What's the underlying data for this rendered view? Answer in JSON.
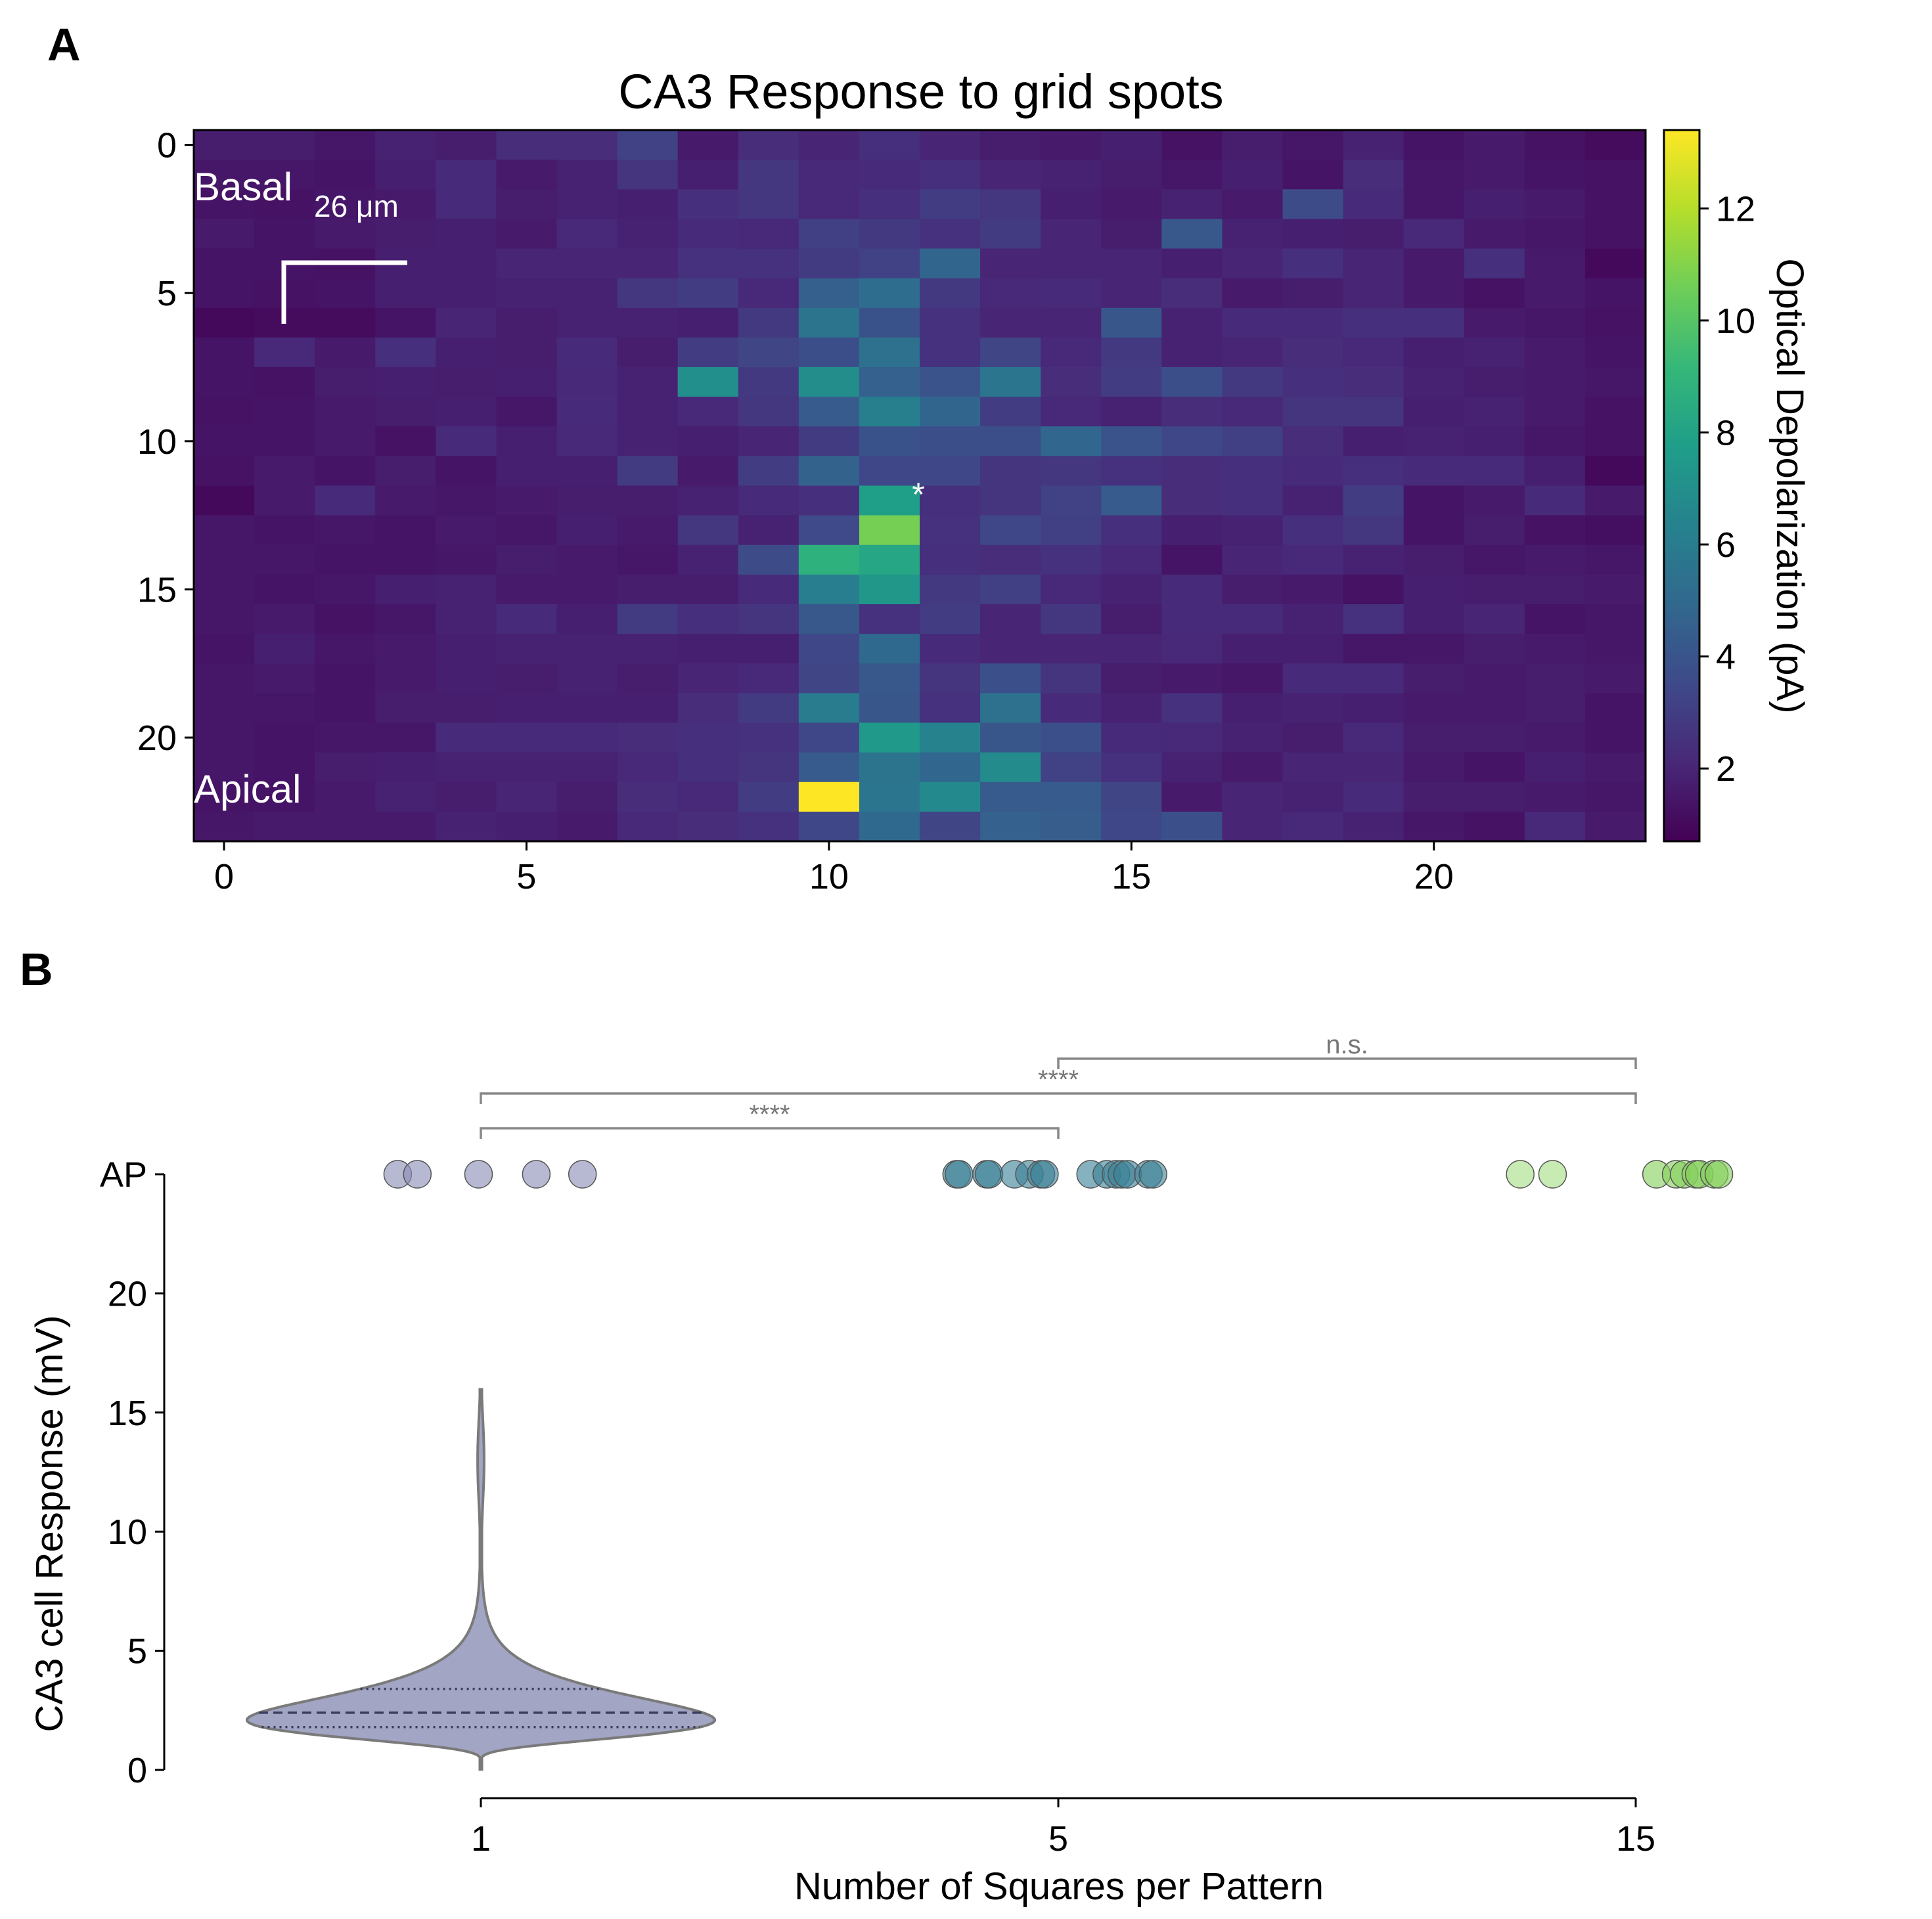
{
  "panel_labels": {
    "a": "A",
    "b": "B"
  },
  "chart_data": [
    {
      "panel": "A",
      "type": "heatmap",
      "title": "CA3 Response to grid spots",
      "xlabel": "",
      "ylabel": "",
      "x_ticks": [
        "0",
        "5",
        "10",
        "15",
        "20"
      ],
      "y_ticks": [
        "0",
        "5",
        "10",
        "15",
        "20"
      ],
      "grid_size": [
        24,
        24
      ],
      "colormap": "viridis",
      "colorbar": {
        "label": "Optical Depolarization (pA)",
        "ticks": [
          "2",
          "4",
          "6",
          "8",
          "10",
          "12"
        ],
        "range": [
          0.7,
          13.4
        ]
      },
      "annotations": {
        "top_label": "Basal",
        "bottom_label": "Apical",
        "scale_label": "26 μm",
        "marker": "*"
      },
      "values": [
        [
          1.7,
          1.7,
          1.5,
          1.9,
          1.7,
          2.3,
          2.3,
          3.2,
          1.6,
          2.3,
          2.0,
          2.4,
          2.0,
          1.7,
          1.6,
          1.8,
          1.3,
          1.7,
          1.5,
          1.9,
          1.4,
          1.6,
          1.3,
          1.1
        ],
        [
          1.5,
          1.5,
          1.4,
          1.8,
          2.2,
          1.6,
          1.9,
          2.6,
          1.8,
          2.7,
          2.1,
          2.2,
          2.4,
          2.0,
          1.9,
          1.7,
          1.5,
          1.8,
          1.4,
          2.3,
          1.5,
          1.6,
          1.4,
          1.3
        ],
        [
          1.4,
          1.3,
          1.5,
          1.6,
          2.2,
          1.7,
          1.9,
          1.8,
          2.4,
          2.7,
          2.1,
          2.4,
          3.0,
          2.7,
          1.8,
          1.6,
          1.9,
          1.6,
          3.6,
          2.2,
          1.5,
          1.8,
          1.6,
          1.3
        ],
        [
          1.6,
          1.4,
          1.6,
          1.7,
          1.8,
          1.6,
          2.1,
          1.9,
          2.2,
          2.1,
          3.1,
          2.8,
          2.5,
          2.9,
          2.0,
          1.7,
          4.2,
          1.9,
          1.8,
          1.7,
          2.1,
          1.6,
          1.5,
          1.3
        ],
        [
          1.4,
          1.4,
          1.3,
          1.8,
          1.8,
          2.0,
          2.0,
          2.0,
          2.5,
          2.5,
          2.9,
          3.2,
          4.8,
          2.0,
          2.0,
          2.0,
          1.8,
          2.0,
          2.4,
          2.0,
          1.6,
          2.4,
          1.6,
          1.0
        ],
        [
          1.4,
          1.3,
          1.4,
          1.8,
          1.8,
          1.9,
          1.9,
          2.7,
          3.0,
          2.1,
          4.5,
          5.2,
          2.8,
          2.1,
          2.2,
          2.0,
          2.3,
          1.6,
          1.7,
          2.0,
          1.6,
          1.3,
          1.6,
          1.4
        ],
        [
          1.0,
          1.1,
          1.1,
          1.4,
          2.0,
          1.7,
          1.9,
          1.9,
          1.8,
          2.8,
          5.6,
          3.9,
          2.5,
          2.0,
          2.0,
          4.1,
          1.9,
          2.2,
          2.2,
          2.4,
          2.4,
          1.6,
          1.5,
          1.3
        ],
        [
          1.4,
          2.1,
          1.6,
          2.4,
          1.8,
          1.7,
          2.2,
          1.7,
          3.0,
          3.3,
          3.7,
          5.4,
          2.5,
          3.3,
          2.1,
          2.8,
          1.9,
          2.0,
          2.3,
          2.1,
          1.8,
          1.9,
          1.6,
          1.4
        ],
        [
          1.4,
          1.3,
          1.7,
          1.8,
          1.7,
          1.8,
          2.1,
          1.9,
          7.0,
          2.8,
          6.9,
          4.6,
          4.0,
          5.7,
          2.3,
          3.0,
          3.7,
          2.8,
          2.4,
          2.3,
          1.9,
          1.7,
          1.6,
          1.5
        ],
        [
          1.3,
          1.4,
          1.6,
          1.7,
          1.8,
          1.5,
          2.2,
          1.9,
          2.1,
          2.7,
          4.3,
          6.2,
          4.8,
          3.0,
          2.1,
          1.9,
          2.3,
          2.1,
          2.6,
          2.6,
          1.8,
          1.9,
          1.6,
          1.3
        ],
        [
          1.4,
          1.4,
          1.6,
          1.3,
          2.2,
          1.8,
          2.1,
          1.9,
          1.8,
          2.0,
          2.9,
          3.9,
          3.7,
          3.7,
          4.9,
          4.0,
          3.4,
          3.1,
          2.3,
          1.8,
          1.9,
          1.8,
          1.5,
          1.3
        ],
        [
          1.3,
          1.6,
          1.4,
          1.7,
          1.4,
          1.8,
          1.8,
          2.9,
          1.6,
          3.0,
          4.7,
          3.4,
          3.4,
          2.6,
          2.7,
          2.5,
          2.3,
          2.4,
          2.2,
          2.4,
          2.2,
          2.2,
          1.8,
          1.0
        ],
        [
          1.0,
          1.6,
          2.2,
          1.6,
          1.5,
          1.6,
          1.7,
          1.7,
          1.9,
          2.2,
          2.4,
          7.8,
          2.4,
          2.6,
          3.2,
          4.3,
          2.3,
          2.4,
          1.9,
          3.0,
          1.4,
          1.6,
          2.2,
          1.6
        ],
        [
          1.5,
          1.4,
          1.5,
          1.4,
          1.6,
          1.5,
          1.8,
          1.6,
          2.7,
          1.9,
          3.5,
          10.7,
          2.5,
          3.4,
          3.1,
          2.4,
          1.8,
          1.9,
          2.4,
          2.7,
          1.4,
          1.7,
          1.3,
          1.2
        ],
        [
          1.5,
          1.5,
          1.4,
          1.4,
          1.5,
          1.7,
          1.6,
          1.5,
          1.9,
          3.6,
          8.8,
          8.2,
          2.4,
          2.3,
          2.5,
          2.1,
          1.4,
          2.0,
          2.1,
          1.9,
          1.7,
          1.5,
          1.6,
          1.5
        ],
        [
          1.5,
          1.4,
          1.5,
          1.8,
          1.9,
          1.6,
          1.6,
          1.7,
          1.7,
          2.2,
          6.1,
          7.4,
          2.8,
          3.1,
          2.1,
          1.9,
          2.2,
          1.7,
          1.6,
          1.3,
          1.8,
          1.7,
          1.7,
          1.6
        ],
        [
          1.5,
          1.6,
          1.3,
          1.5,
          1.9,
          2.2,
          1.8,
          2.9,
          2.4,
          2.6,
          4.2,
          2.5,
          3.0,
          2.0,
          2.7,
          1.7,
          2.2,
          2.2,
          1.9,
          2.5,
          1.8,
          2.0,
          1.4,
          1.5
        ],
        [
          1.4,
          1.8,
          1.5,
          1.6,
          1.8,
          1.9,
          1.9,
          1.9,
          1.8,
          1.8,
          3.4,
          5.0,
          2.2,
          2.0,
          2.0,
          2.0,
          2.1,
          1.8,
          1.8,
          1.5,
          1.5,
          1.7,
          1.6,
          1.5
        ],
        [
          1.5,
          1.6,
          1.4,
          1.6,
          1.8,
          1.7,
          1.9,
          1.7,
          2.0,
          2.1,
          3.3,
          4.2,
          2.6,
          3.8,
          2.6,
          1.7,
          1.6,
          1.5,
          2.2,
          2.2,
          1.7,
          1.6,
          1.7,
          1.6
        ],
        [
          1.5,
          1.5,
          1.4,
          1.7,
          1.7,
          1.8,
          1.8,
          1.8,
          2.3,
          2.9,
          6.0,
          4.1,
          2.5,
          5.4,
          2.2,
          1.9,
          2.5,
          1.8,
          1.9,
          1.8,
          1.6,
          1.6,
          1.7,
          1.4
        ],
        [
          1.5,
          1.4,
          1.5,
          1.5,
          2.2,
          2.2,
          2.2,
          2.3,
          2.4,
          2.5,
          3.4,
          7.5,
          6.4,
          4.1,
          3.8,
          2.2,
          2.1,
          1.9,
          1.7,
          2.1,
          1.7,
          1.7,
          1.6,
          1.4
        ],
        [
          1.5,
          1.4,
          1.7,
          1.8,
          1.9,
          1.9,
          1.9,
          2.1,
          2.4,
          2.6,
          4.3,
          5.6,
          4.9,
          6.8,
          3.2,
          2.5,
          1.9,
          1.6,
          2.0,
          2.0,
          1.6,
          1.4,
          1.8,
          1.6
        ],
        [
          1.4,
          1.4,
          1.6,
          1.9,
          1.7,
          2.0,
          1.7,
          2.3,
          2.1,
          3.0,
          13.4,
          5.7,
          6.7,
          4.3,
          4.3,
          3.3,
          1.6,
          2.0,
          1.9,
          2.2,
          1.7,
          1.7,
          1.6,
          1.5
        ],
        [
          1.5,
          1.6,
          1.6,
          1.6,
          1.9,
          1.8,
          1.6,
          2.1,
          2.3,
          2.5,
          3.4,
          5.0,
          3.3,
          4.6,
          4.4,
          3.4,
          3.8,
          2.0,
          2.1,
          1.9,
          1.5,
          1.3,
          2.1,
          1.6
        ]
      ]
    },
    {
      "panel": "B",
      "type": "violin",
      "xlabel": "Number of Squares per Pattern",
      "ylabel": "CA3 cell Response (mV)",
      "categories": [
        "1",
        "5",
        "15"
      ],
      "y_ticks": [
        "0",
        "5",
        "10",
        "15",
        "20"
      ],
      "ylim": [
        0,
        25
      ],
      "ap_label": "AP",
      "violin": {
        "category": "1",
        "color": "#a2a5c4",
        "quartiles": {
          "q1": 1.8,
          "median": 2.4,
          "q3": 3.4
        },
        "range": [
          0,
          16
        ]
      },
      "ap_points": [
        {
          "category": "1",
          "color": "#8b8eb6",
          "offsets": [
            -0.72,
            -0.55,
            -0.02,
            0.48,
            0.88
          ]
        },
        {
          "category": "5",
          "color": "#3b8196",
          "offsets": [
            -0.88,
            -0.86,
            -0.62,
            -0.6,
            -0.38,
            -0.25,
            -0.15,
            -0.12,
            0.28,
            0.42,
            0.5,
            0.55,
            0.6,
            0.78,
            0.82
          ]
        },
        {
          "category": "15",
          "color": "#a5de82",
          "offsets": [
            -1.0,
            -0.72
          ]
        },
        {
          "category": "15",
          "color": "#86d05c",
          "offsets": [
            0.18,
            0.35,
            0.42,
            0.52,
            0.55,
            0.68,
            0.72
          ]
        }
      ],
      "significance": [
        {
          "from": "1",
          "to": "5",
          "label": "****"
        },
        {
          "from": "1",
          "to": "15",
          "label": "****"
        },
        {
          "from": "5",
          "to": "15",
          "label": "n.s."
        }
      ]
    }
  ]
}
